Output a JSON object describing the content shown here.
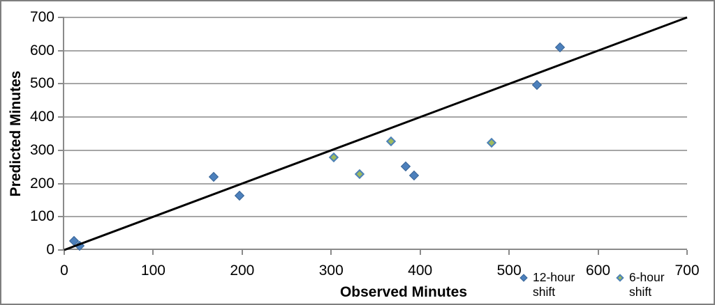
{
  "chart_data": {
    "type": "scatter",
    "title": "",
    "xlabel": "Observed Minutes",
    "ylabel": "Predicted Minutes",
    "xlim": [
      0,
      700
    ],
    "ylim": [
      0,
      700
    ],
    "x_ticks": [
      "0",
      "100",
      "200",
      "300",
      "400",
      "500",
      "600",
      "700"
    ],
    "y_ticks": [
      "0",
      "100",
      "200",
      "300",
      "400",
      "500",
      "600",
      "700"
    ],
    "grid": "horizontal-only",
    "legend_position": "bottom-right",
    "ref_line": {
      "name": "identity-line",
      "x1": 0,
      "y1": 0,
      "x2": 700,
      "y2": 700,
      "color": "#000000",
      "width": 3
    },
    "series": [
      {
        "name": "12-hour shift",
        "marker": "diamond",
        "fill": "#4c80bc",
        "stroke": "#3a6596",
        "points": [
          [
            11,
            28
          ],
          [
            17,
            12
          ],
          [
            168,
            220
          ],
          [
            197,
            163
          ],
          [
            384,
            252
          ],
          [
            393,
            224
          ],
          [
            531,
            497
          ],
          [
            557,
            610
          ]
        ]
      },
      {
        "name": "6-hour shift",
        "marker": "diamond",
        "fill": "#9ebb5e",
        "stroke": "#4c80bc",
        "points": [
          [
            303,
            278
          ],
          [
            332,
            229
          ],
          [
            367,
            326
          ],
          [
            480,
            322
          ]
        ]
      }
    ]
  },
  "colors": {
    "background": "#ffffff",
    "frame_border": "#7f7f7f",
    "gridline": "#a6a6a6",
    "axis_line": "#8a8a8a",
    "text": "#000000",
    "ref_line": "#000000"
  }
}
